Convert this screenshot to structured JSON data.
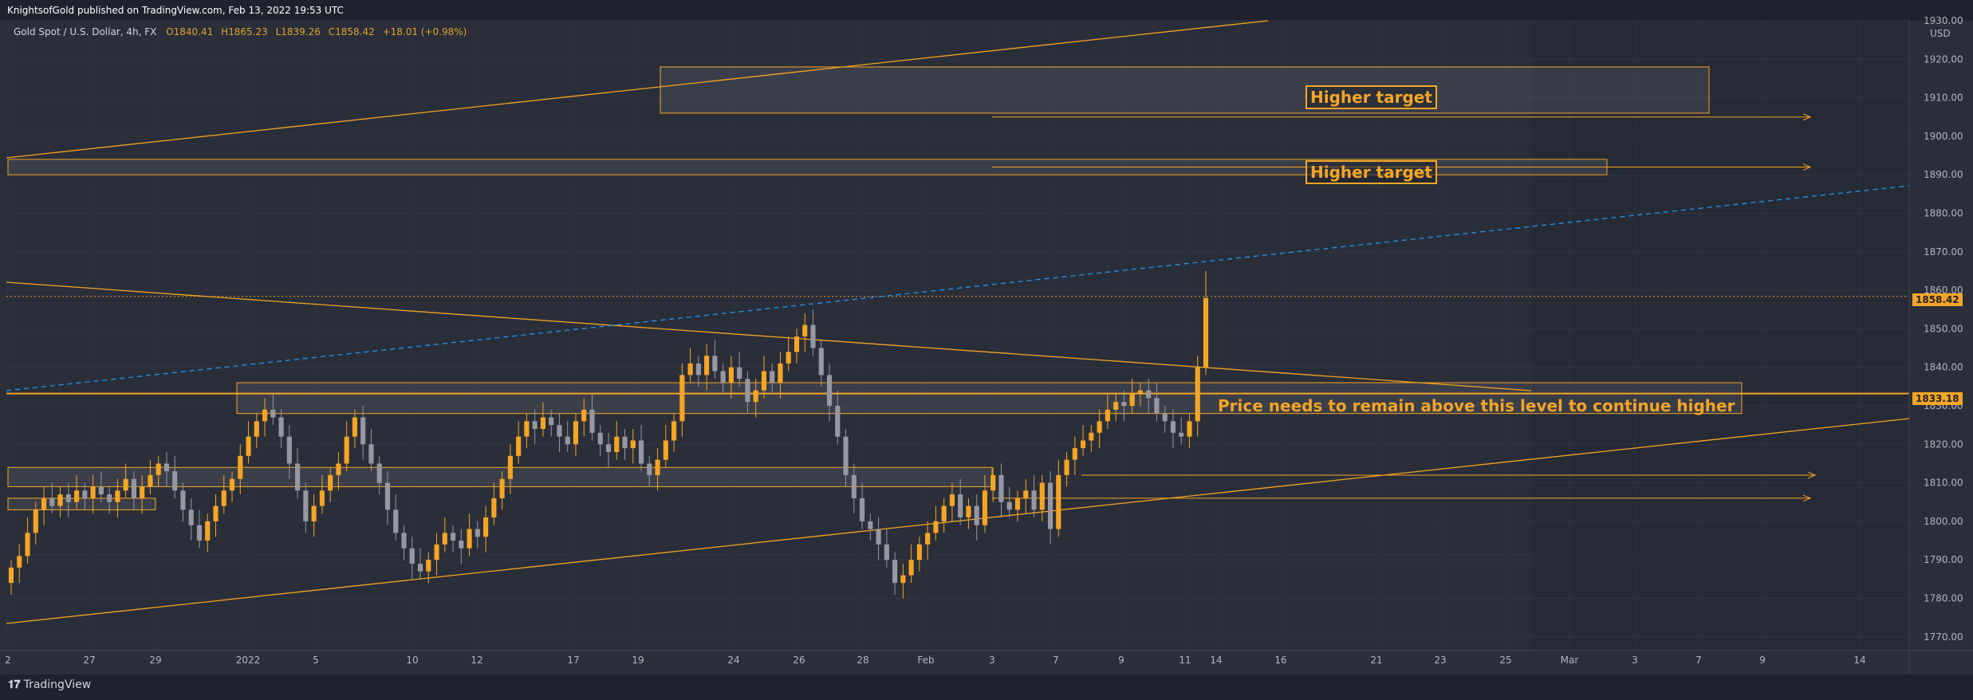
{
  "header": {
    "publisher_line": "KnightsofGold published on TradingView.com, Feb 13, 2022 19:53 UTC"
  },
  "legend": {
    "symbol": "Gold Spot / U.S. Dollar, 4h, FX",
    "open": "O1840.41",
    "high": "H1865.23",
    "low": "L1839.26",
    "close": "C1858.42",
    "change": "+18.01 (+0.98%)"
  },
  "annotations": {
    "higher_target_top": "Higher target",
    "higher_target_bottom": "Higher target",
    "level_note": "Price needs to remain above this level to continue higher"
  },
  "price_axis": {
    "currency": "USD",
    "current_price_tag": "1858.42",
    "level_tag": "1833.18"
  },
  "footer": {
    "brand": "TradingView"
  },
  "colors": {
    "background": "#2a2e39",
    "bull_candle": "#f5a524",
    "bear_candle": "#9598a1",
    "drawing": "#f5a524",
    "trend_dashed": "#2196f3"
  },
  "chart_data": {
    "type": "candlestick",
    "symbol": "Gold Spot / U.S. Dollar",
    "interval": "4h",
    "ylim": [
      1766,
      1932
    ],
    "y_ticks": [
      1770,
      1780,
      1790,
      1800,
      1810,
      1820,
      1830,
      1840,
      1850,
      1860,
      1870,
      1880,
      1890,
      1900,
      1910,
      1920,
      1930
    ],
    "x_ticks": [
      "2",
      "27",
      "29",
      "2022",
      "5",
      "10",
      "12",
      "17",
      "19",
      "24",
      "26",
      "28",
      "Feb",
      "3",
      "7",
      "9",
      "11",
      "14",
      "16",
      "21",
      "23",
      "25",
      "Mar",
      "3",
      "7",
      "9",
      "14"
    ],
    "current_price": 1858.42,
    "horizontal_level": 1833.18,
    "zones": [
      {
        "name": "higher-target-zone-1",
        "low": 1906,
        "high": 1918
      },
      {
        "name": "higher-target-zone-2",
        "low": 1890,
        "high": 1894
      },
      {
        "name": "support-zone-mid",
        "low": 1828,
        "high": 1836
      },
      {
        "name": "support-zone-low-1",
        "low": 1809,
        "high": 1814
      },
      {
        "name": "support-zone-low-2",
        "low": 1803,
        "high": 1806
      }
    ],
    "closes": [
      1788,
      1791,
      1797,
      1803,
      1806,
      1804,
      1807,
      1805,
      1808,
      1806,
      1809,
      1807,
      1805,
      1808,
      1811,
      1806,
      1809,
      1812,
      1815,
      1813,
      1808,
      1803,
      1799,
      1795,
      1800,
      1804,
      1808,
      1811,
      1817,
      1822,
      1826,
      1829,
      1827,
      1822,
      1815,
      1808,
      1800,
      1804,
      1808,
      1812,
      1815,
      1822,
      1827,
      1820,
      1815,
      1810,
      1803,
      1797,
      1793,
      1789,
      1787,
      1790,
      1794,
      1797,
      1795,
      1793,
      1798,
      1796,
      1801,
      1806,
      1811,
      1817,
      1822,
      1826,
      1824,
      1827,
      1825,
      1822,
      1820,
      1826,
      1829,
      1823,
      1820,
      1818,
      1822,
      1819,
      1821,
      1815,
      1812,
      1816,
      1821,
      1826,
      1838,
      1841,
      1838,
      1843,
      1839,
      1836,
      1840,
      1837,
      1831,
      1834,
      1839,
      1836,
      1841,
      1844,
      1848,
      1851,
      1845,
      1838,
      1830,
      1822,
      1812,
      1806,
      1800,
      1798,
      1794,
      1790,
      1784,
      1786,
      1790,
      1794,
      1797,
      1800,
      1804,
      1807,
      1801,
      1804,
      1799,
      1808,
      1812,
      1805,
      1803,
      1806,
      1808,
      1803,
      1810,
      1798,
      1812,
      1816,
      1819,
      1821,
      1823,
      1826,
      1829,
      1831,
      1830,
      1833,
      1834,
      1832,
      1828,
      1826,
      1823,
      1822,
      1826,
      1840,
      1858
    ]
  }
}
